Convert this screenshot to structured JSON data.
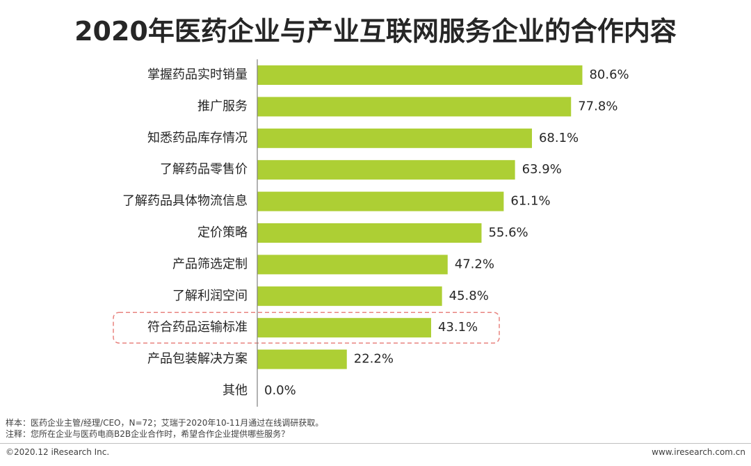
{
  "title": "2020年医药企业与产业互联网服务企业的合作内容",
  "chart_data": {
    "type": "bar",
    "orientation": "horizontal",
    "categories": [
      "掌握药品实时销量",
      "推广服务",
      "知悉药品库存情况",
      "了解药品零售价",
      "了解药品具体物流信息",
      "定价策略",
      "产品筛选定制",
      "了解利润空间",
      "符合药品运输标准",
      "产品包装解决方案",
      "其他"
    ],
    "values": [
      80.6,
      77.8,
      68.1,
      63.9,
      61.1,
      55.6,
      47.2,
      45.8,
      43.1,
      22.2,
      0.0
    ],
    "value_labels": [
      "80.6%",
      "77.8%",
      "68.1%",
      "63.9%",
      "61.1%",
      "55.6%",
      "47.2%",
      "45.8%",
      "43.1%",
      "22.2%",
      "0.0%"
    ],
    "highlighted_category": "符合药品运输标准",
    "xlim": [
      0,
      100
    ],
    "grid": false,
    "bar_color": "#adcf34",
    "highlight_border_color": "#e8837f"
  },
  "notes": {
    "sample": "样本：医药企业主管/经理/CEO，N=72；艾瑞于2020年10-11月通过在线调研获取。",
    "comment": "注释：您所在企业与医药电商B2B企业合作时，希望合作企业提供哪些服务？"
  },
  "footer": {
    "copyright": "©2020.12 iResearch Inc.",
    "website": "www.iresearch.com.cn"
  }
}
